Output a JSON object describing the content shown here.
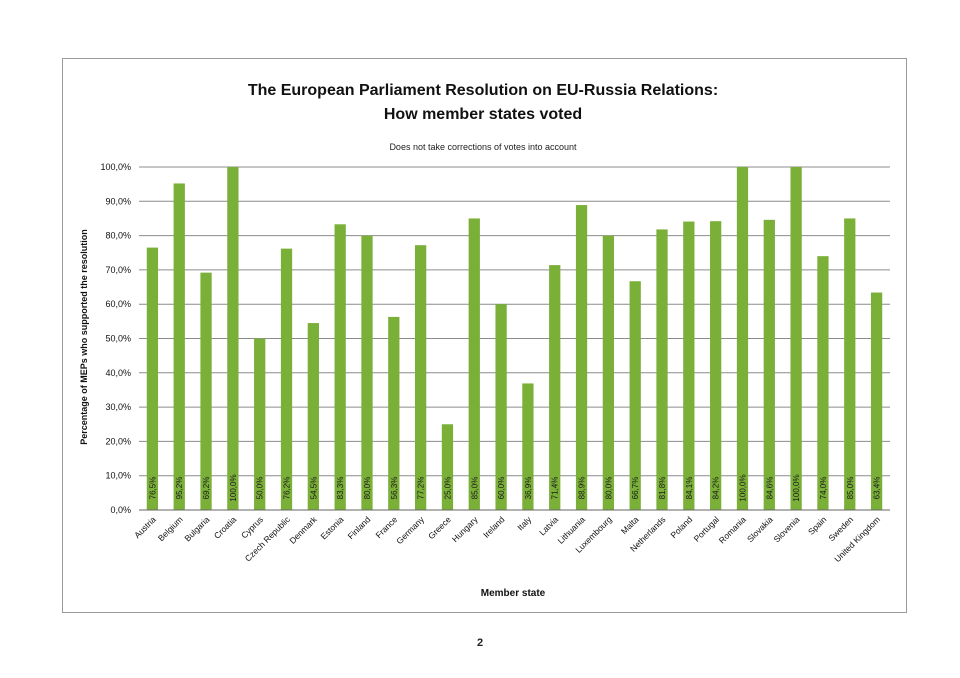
{
  "page": {
    "number": "2"
  },
  "colors": {
    "bar": "#7aaf38",
    "grid": "#8c8c8c",
    "axis": "#666666"
  },
  "chart_data": {
    "type": "bar",
    "title": [
      "The European Parliament Resolution on EU-Russia Relations:",
      "How member states voted"
    ],
    "subtitle": "Does not take corrections of votes into account",
    "xlabel": "Member state",
    "ylabel": "Percentage of MEPs who supported the resolution",
    "ylim": [
      0,
      100
    ],
    "yticks": [
      0,
      10,
      20,
      30,
      40,
      50,
      60,
      70,
      80,
      90,
      100
    ],
    "ytick_labels": [
      "0,0%",
      "10,0%",
      "20,0%",
      "30,0%",
      "40,0%",
      "50,0%",
      "60,0%",
      "70,0%",
      "80,0%",
      "90,0%",
      "100,0%"
    ],
    "grid": true,
    "categories": [
      "Austria",
      "Belgium",
      "Bulgaria",
      "Croatia",
      "Cyprus",
      "Czech Republic",
      "Denmark",
      "Estonia",
      "Finland",
      "France",
      "Germany",
      "Greece",
      "Hungary",
      "Ireland",
      "Italy",
      "Latvia",
      "Lithuania",
      "Luxembourg",
      "Malta",
      "Netherlands",
      "Poland",
      "Portugal",
      "Romania",
      "Slovakia",
      "Slovenia",
      "Spain",
      "Sweden",
      "United Kingdom"
    ],
    "values": [
      76.5,
      95.2,
      69.2,
      100.0,
      50.0,
      76.2,
      54.5,
      83.3,
      80.0,
      56.3,
      77.2,
      25.0,
      85.0,
      60.0,
      36.9,
      71.4,
      88.9,
      80.0,
      66.7,
      81.8,
      84.1,
      84.2,
      100.0,
      84.6,
      100.0,
      74.0,
      85.0,
      63.4
    ],
    "value_labels": [
      "76,5%",
      "95,2%",
      "69,2%",
      "100,0%",
      "50,0%",
      "76,2%",
      "54,5%",
      "83,3%",
      "80,0%",
      "56,3%",
      "77,2%",
      "25,0%",
      "85,0%",
      "60,0%",
      "36,9%",
      "71,4%",
      "88,9%",
      "80,0%",
      "66,7%",
      "81,8%",
      "84,1%",
      "84,2%",
      "100,0%",
      "84,6%",
      "100,0%",
      "74,0%",
      "85,0%",
      "63,4%"
    ]
  }
}
